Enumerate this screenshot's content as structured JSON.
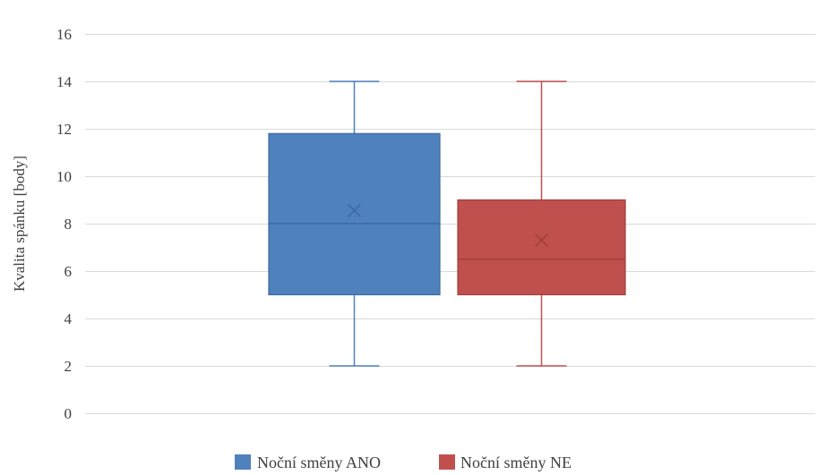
{
  "chart_data": {
    "type": "boxplot",
    "title": "",
    "xlabel": "",
    "ylabel": "Kvalita spánku [body]",
    "ylim": [
      0,
      16
    ],
    "yticks": [
      0,
      2,
      4,
      6,
      8,
      10,
      12,
      14,
      16
    ],
    "yticklabels": [
      "0",
      "2",
      "4",
      "6",
      "8",
      "10",
      "12",
      "14",
      "16"
    ],
    "grid": true,
    "legend": "bottom",
    "series": [
      {
        "name": "Noční směny ANO",
        "color": "#4f81bd",
        "min": 2,
        "q1": 5,
        "median": 8,
        "q3": 11.8,
        "max": 14,
        "mean": 8.55
      },
      {
        "name": "Noční směny NE",
        "color": "#c0504d",
        "min": 2,
        "q1": 5,
        "median": 6.5,
        "q3": 9,
        "max": 14,
        "mean": 7.3
      }
    ]
  }
}
